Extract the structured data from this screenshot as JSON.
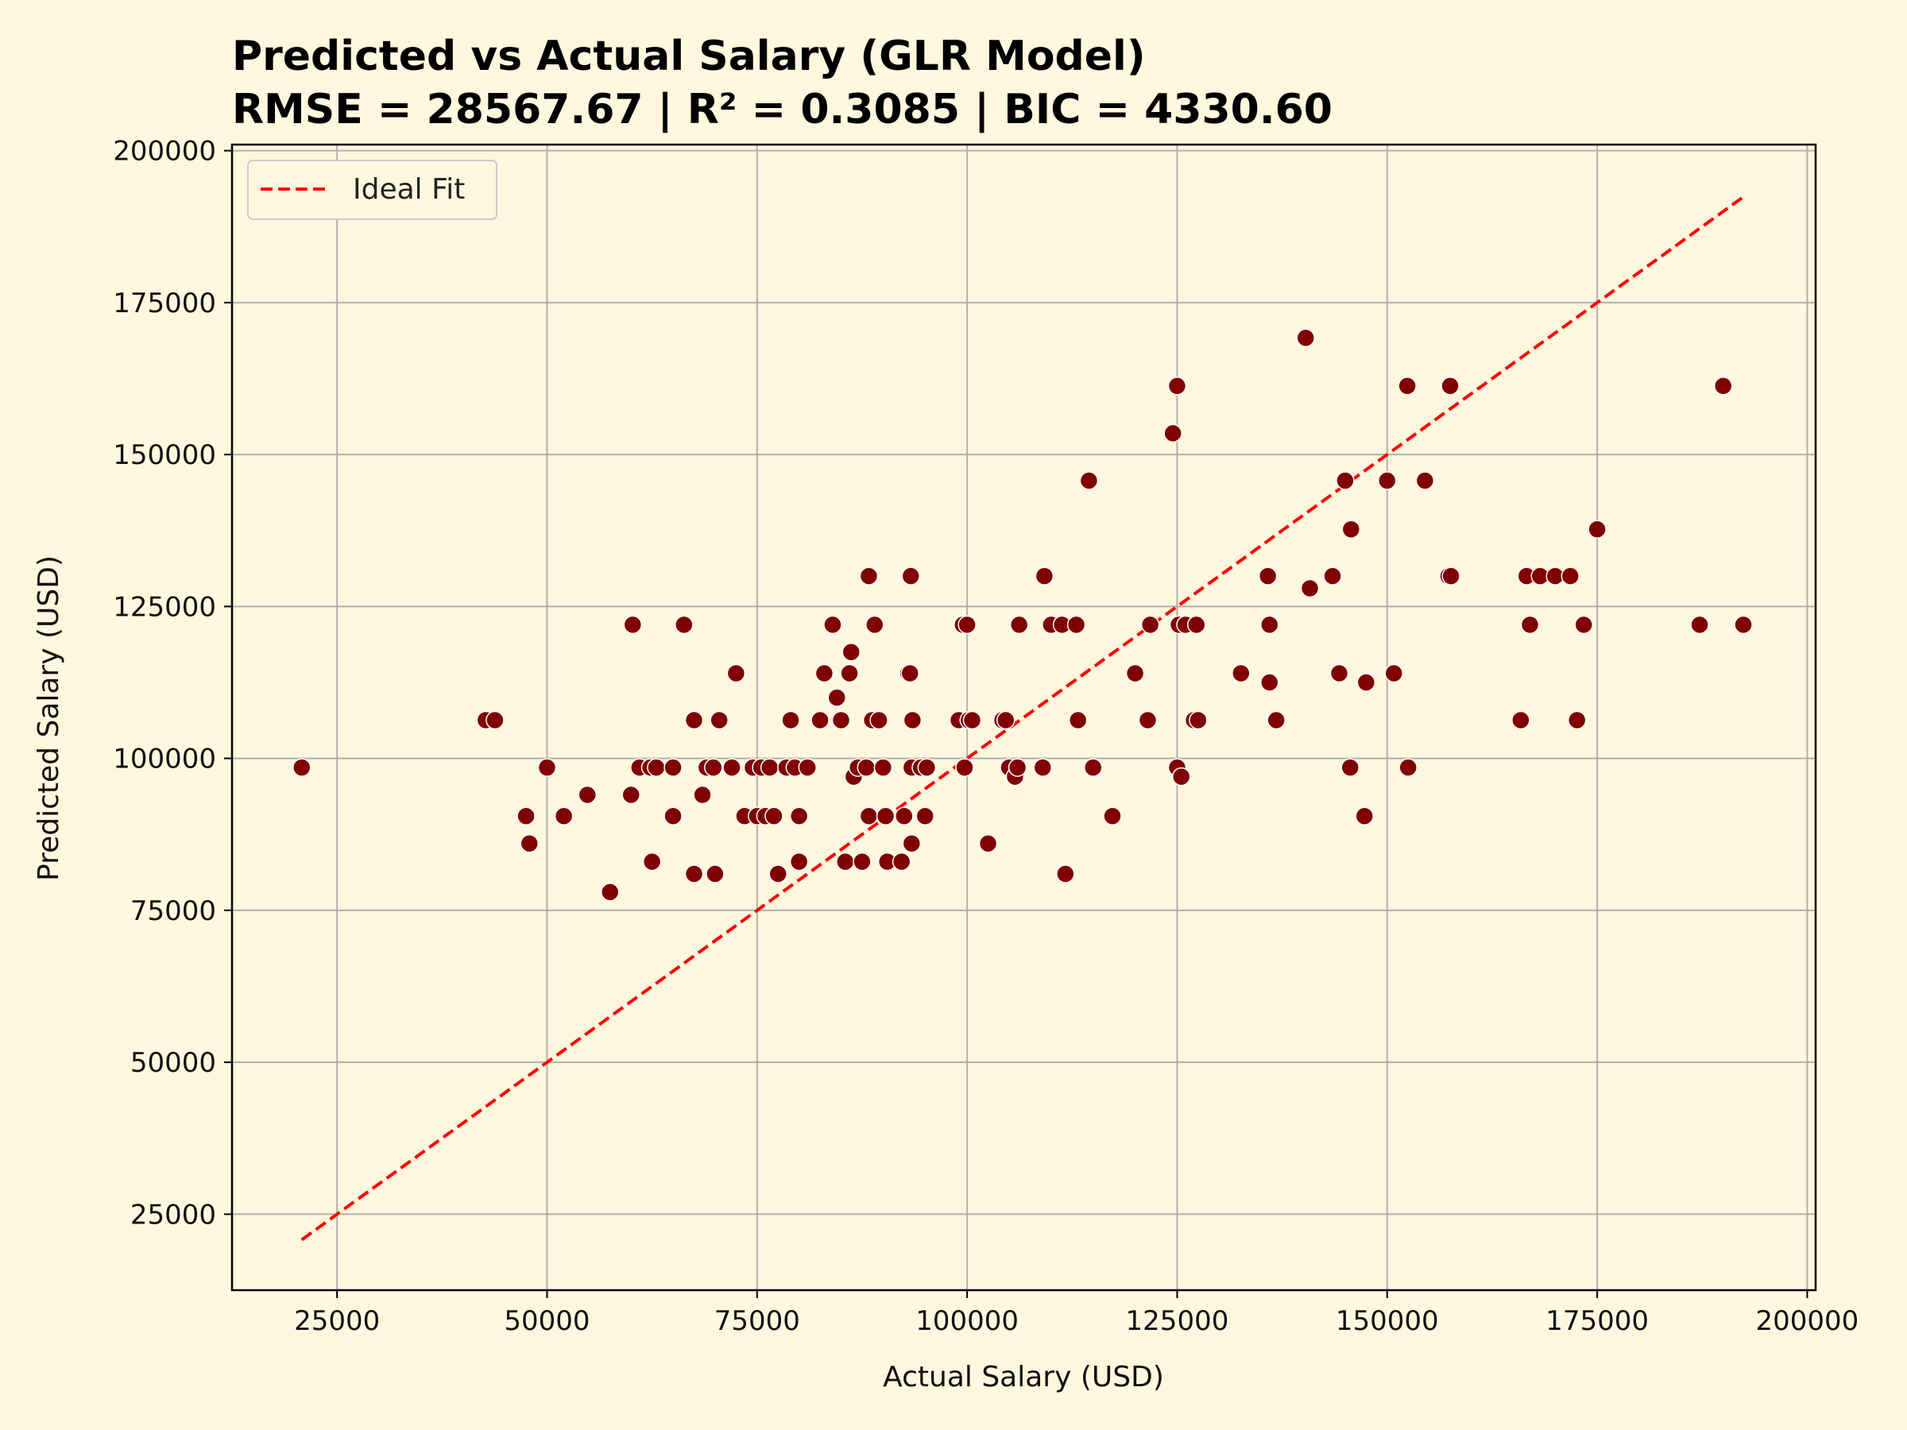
{
  "chart_data": {
    "type": "scatter",
    "title": "Predicted vs Actual Salary (GLR Model)",
    "subtitle": "RMSE = 28567.67 | R² = 0.3085 | BIC = 4330.60",
    "xlabel": "Actual Salary (USD)",
    "ylabel": "Predicted Salary (USD)",
    "xlim": [
      12500,
      201000
    ],
    "ylim": [
      12500,
      201000
    ],
    "xticks": [
      25000,
      50000,
      75000,
      100000,
      125000,
      150000,
      175000,
      200000
    ],
    "yticks": [
      25000,
      50000,
      75000,
      100000,
      125000,
      150000,
      175000,
      200000
    ],
    "grid": true,
    "legend_position": "top-left",
    "colors": {
      "background": "#fff8de",
      "points": "#800000",
      "point_edge": "#ffffff",
      "ideal_line": "#ff0000",
      "grid": "#b0b0b0"
    },
    "ideal_line": {
      "name": "Ideal Fit",
      "x": [
        20800,
        192500
      ],
      "y": [
        20800,
        192500
      ]
    },
    "points": [
      [
        20800,
        98500
      ],
      [
        42700,
        106300
      ],
      [
        43800,
        106300
      ],
      [
        47500,
        90500
      ],
      [
        47900,
        86000
      ],
      [
        50000,
        98500
      ],
      [
        52000,
        90500
      ],
      [
        54800,
        94000
      ],
      [
        57500,
        78000
      ],
      [
        60000,
        94000
      ],
      [
        60200,
        122000
      ],
      [
        61000,
        98500
      ],
      [
        62300,
        98500
      ],
      [
        62500,
        83000
      ],
      [
        63000,
        98500
      ],
      [
        65000,
        98500
      ],
      [
        65000,
        90500
      ],
      [
        66300,
        122000
      ],
      [
        67500,
        106300
      ],
      [
        67500,
        81000
      ],
      [
        68500,
        94000
      ],
      [
        69000,
        98500
      ],
      [
        69800,
        98500
      ],
      [
        70000,
        81000
      ],
      [
        70500,
        106300
      ],
      [
        72000,
        98500
      ],
      [
        72500,
        114000
      ],
      [
        73500,
        90500
      ],
      [
        74500,
        98500
      ],
      [
        75000,
        90500
      ],
      [
        75500,
        98500
      ],
      [
        76000,
        90500
      ],
      [
        76500,
        98500
      ],
      [
        77000,
        90500
      ],
      [
        77500,
        81000
      ],
      [
        78500,
        98500
      ],
      [
        79000,
        106300
      ],
      [
        79500,
        98500
      ],
      [
        80000,
        90500
      ],
      [
        80000,
        83000
      ],
      [
        81000,
        98500
      ],
      [
        82500,
        106300
      ],
      [
        83000,
        114000
      ],
      [
        84000,
        122000
      ],
      [
        84500,
        110000
      ],
      [
        85000,
        106300
      ],
      [
        85500,
        83000
      ],
      [
        86000,
        114000
      ],
      [
        86200,
        117500
      ],
      [
        86500,
        97000
      ],
      [
        87000,
        98500
      ],
      [
        87500,
        83000
      ],
      [
        88000,
        98500
      ],
      [
        88300,
        130000
      ],
      [
        88300,
        90500
      ],
      [
        88700,
        106300
      ],
      [
        89000,
        122000
      ],
      [
        89500,
        106300
      ],
      [
        90000,
        98500
      ],
      [
        90300,
        90500
      ],
      [
        90500,
        83000
      ],
      [
        92200,
        83000
      ],
      [
        92500,
        90500
      ],
      [
        93000,
        114000
      ],
      [
        93200,
        114000
      ],
      [
        93300,
        130000
      ],
      [
        93400,
        86000
      ],
      [
        93400,
        98500
      ],
      [
        93500,
        106300
      ],
      [
        94500,
        98500
      ],
      [
        95000,
        90500
      ],
      [
        95200,
        98500
      ],
      [
        99000,
        106300
      ],
      [
        99500,
        122000
      ],
      [
        99700,
        98500
      ],
      [
        100000,
        122000
      ],
      [
        100200,
        106300
      ],
      [
        100600,
        106300
      ],
      [
        102500,
        86000
      ],
      [
        104200,
        106300
      ],
      [
        104600,
        106300
      ],
      [
        105000,
        98500
      ],
      [
        105700,
        97000
      ],
      [
        106000,
        98500
      ],
      [
        106200,
        122000
      ],
      [
        109000,
        98500
      ],
      [
        109200,
        130000
      ],
      [
        110000,
        122000
      ],
      [
        111300,
        122000
      ],
      [
        111700,
        81000
      ],
      [
        113000,
        122000
      ],
      [
        113200,
        106300
      ],
      [
        114500,
        145700
      ],
      [
        115000,
        98500
      ],
      [
        117300,
        90500
      ],
      [
        120000,
        114000
      ],
      [
        121500,
        106300
      ],
      [
        121800,
        122000
      ],
      [
        124500,
        153500
      ],
      [
        125000,
        161300
      ],
      [
        125000,
        98500
      ],
      [
        125200,
        122000
      ],
      [
        125500,
        97000
      ],
      [
        126000,
        122000
      ],
      [
        127000,
        106300
      ],
      [
        127300,
        122000
      ],
      [
        127500,
        106300
      ],
      [
        132600,
        114000
      ],
      [
        135800,
        130000
      ],
      [
        136000,
        122000
      ],
      [
        136000,
        112500
      ],
      [
        136800,
        106300
      ],
      [
        140300,
        169200
      ],
      [
        140800,
        128000
      ],
      [
        143500,
        130000
      ],
      [
        144300,
        114000
      ],
      [
        145000,
        145700
      ],
      [
        145600,
        98500
      ],
      [
        145700,
        137700
      ],
      [
        147300,
        90500
      ],
      [
        147500,
        112500
      ],
      [
        150000,
        145700
      ],
      [
        150800,
        114000
      ],
      [
        152400,
        161300
      ],
      [
        152500,
        98500
      ],
      [
        154500,
        145700
      ],
      [
        157300,
        130000
      ],
      [
        157500,
        161300
      ],
      [
        157600,
        130000
      ],
      [
        165900,
        106300
      ],
      [
        166600,
        130000
      ],
      [
        167000,
        122000
      ],
      [
        168200,
        130000
      ],
      [
        170000,
        130000
      ],
      [
        171800,
        130000
      ],
      [
        172600,
        106300
      ],
      [
        173400,
        122000
      ],
      [
        175000,
        137700
      ],
      [
        187200,
        122000
      ],
      [
        190000,
        161300
      ],
      [
        192400,
        122000
      ]
    ]
  }
}
